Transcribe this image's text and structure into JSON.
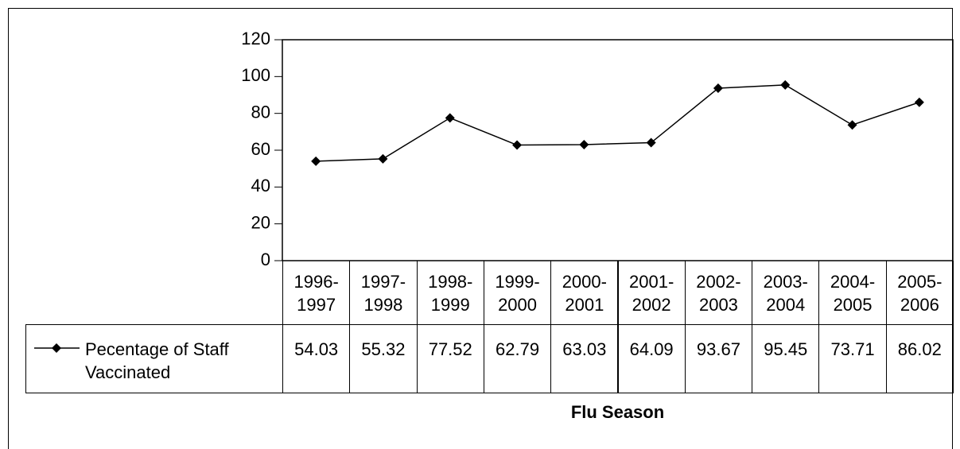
{
  "chart_data": {
    "type": "line",
    "x_label": "Flu Season",
    "categories": [
      "1996-1997",
      "1997-1998",
      "1998-1999",
      "1999-2000",
      "2000-2001",
      "2001-2002",
      "2002-2003",
      "2003-2004",
      "2004-2005",
      "2005-2006"
    ],
    "series": [
      {
        "name": "Pecentage of Staff Vaccinated",
        "color": "#000000",
        "values": [
          54.03,
          55.32,
          77.52,
          62.79,
          63.03,
          64.09,
          93.67,
          95.45,
          73.71,
          86.02
        ]
      }
    ],
    "ylim": [
      0,
      120
    ],
    "yticks": [
      0,
      20,
      40,
      60,
      80,
      100,
      120
    ],
    "grid": false,
    "data_table": true
  }
}
